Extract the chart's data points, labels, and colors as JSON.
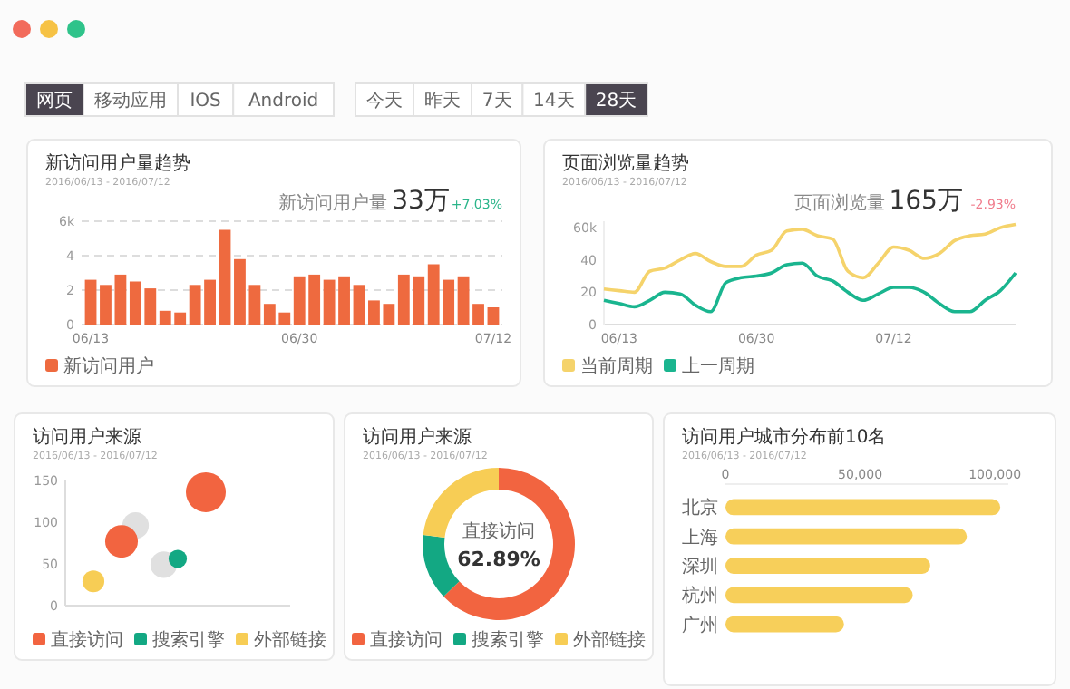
{
  "chart_data": [
    {
      "type": "other",
      "annotations": [
        "网页",
        "移动应用",
        "IOS",
        "Android",
        "今天",
        "昨天",
        "7天",
        "14天",
        "28天"
      ]
    },
    {
      "type": "bar",
      "title": "新访问用户量趋势",
      "subtitle": "2016/06/13 - 2016/07/12",
      "annotations": [
        "新访问用户量",
        "33万",
        "+7.03%"
      ],
      "categories": [
        "06/13",
        null,
        null,
        null,
        null,
        null,
        null,
        null,
        null,
        null,
        null,
        null,
        null,
        null,
        "06/30",
        null,
        null,
        null,
        null,
        null,
        null,
        null,
        null,
        null,
        null,
        null,
        null,
        "07/12"
      ],
      "series": [
        {
          "name": "新访问用户",
          "color": "#ee6a3f",
          "values": [
            2.6,
            2.3,
            2.9,
            2.5,
            2.1,
            0.8,
            0.7,
            2.3,
            2.6,
            5.5,
            3.8,
            2.3,
            1.2,
            0.7,
            2.8,
            2.9,
            2.6,
            2.8,
            2.3,
            1.4,
            1.2,
            2.9,
            2.8,
            3.5,
            2.6,
            2.8,
            1.2,
            1.0
          ]
        }
      ],
      "ylim": [
        0,
        6
      ],
      "yticks": [
        0,
        2,
        4,
        {
          "value": 6,
          "label": "6k"
        }
      ],
      "grid": "y",
      "legend": "bottom"
    },
    {
      "type": "line",
      "title": "页面浏览量趋势",
      "subtitle": "2016/06/13 - 2016/07/12",
      "annotations": [
        "页面浏览量",
        "165万",
        "-2.93%"
      ],
      "categories": [
        null,
        "06/13",
        null,
        null,
        null,
        null,
        null,
        null,
        null,
        null,
        "06/30",
        null,
        null,
        null,
        null,
        null,
        null,
        null,
        null,
        "07/12",
        null,
        null,
        null,
        null,
        null,
        null,
        null,
        null
      ],
      "series": [
        {
          "name": "当前周期",
          "color": "#f5d36b",
          "values": [
            22,
            21,
            20,
            33,
            35,
            40,
            44,
            39,
            36,
            36,
            43,
            46,
            58,
            59,
            55,
            53,
            33,
            29,
            38,
            48,
            46,
            41,
            44,
            52,
            55,
            56,
            60,
            62
          ]
        },
        {
          "name": "上一周期",
          "color": "#1ab58f",
          "values": [
            15,
            13,
            11,
            15,
            20,
            19,
            12,
            8,
            26,
            29,
            30,
            32,
            37,
            38,
            30,
            27,
            20,
            15,
            19,
            23,
            23,
            20,
            13,
            8,
            8,
            15,
            21,
            32
          ]
        }
      ],
      "ylim": [
        0,
        64
      ],
      "yticks": [
        0,
        20,
        40,
        {
          "value": 60,
          "label": "60k"
        }
      ],
      "legend": "bottom"
    },
    {
      "type": "bubble",
      "title": "访问用户来源",
      "subtitle": "2016/06/13 - 2016/07/12",
      "categories": [
        null,
        null,
        null,
        null,
        null,
        null,
        null,
        null,
        null,
        null,
        null,
        null,
        null,
        null,
        null,
        null,
        null
      ],
      "series": [
        {
          "color": "#e0e0e0",
          "values": [
            null,
            null,
            null,
            null,
            null,
            96,
            null,
            49,
            null,
            null,
            null,
            null,
            null,
            null,
            null,
            null,
            null
          ],
          "sizes": [
            null,
            null,
            null,
            null,
            null,
            0.44,
            null,
            0.44,
            null,
            null,
            null,
            null,
            null,
            null,
            null,
            null,
            null
          ]
        },
        {
          "name": "直接访问",
          "color": "#f26440",
          "values": [
            null,
            null,
            null,
            null,
            77,
            null,
            null,
            null,
            null,
            null,
            136,
            null,
            null,
            null,
            null,
            null,
            null
          ],
          "sizes": [
            null,
            null,
            null,
            null,
            0.67,
            null,
            null,
            null,
            null,
            null,
            1,
            null,
            null,
            null,
            null,
            null,
            null
          ]
        },
        {
          "name": "搜索引擎",
          "color": "#13a883",
          "values": [
            null,
            null,
            null,
            null,
            null,
            null,
            null,
            null,
            56,
            null,
            null,
            null,
            null,
            null,
            null,
            null,
            null
          ],
          "sizes": [
            null,
            null,
            null,
            null,
            null,
            null,
            null,
            null,
            0.21,
            null,
            null,
            null,
            null,
            null,
            null,
            null,
            null
          ]
        },
        {
          "name": "外部链接",
          "color": "#f7cd55",
          "values": [
            null,
            null,
            29,
            null,
            null,
            null,
            null,
            null,
            null,
            null,
            null,
            null,
            null,
            null,
            null,
            null,
            null
          ],
          "sizes": [
            null,
            null,
            0.3,
            null,
            null,
            null,
            null,
            null,
            null,
            null,
            null,
            null,
            null,
            null,
            null,
            null,
            null
          ]
        }
      ],
      "ylim": [
        0,
        150
      ],
      "yticks": [
        0,
        50,
        100,
        150
      ],
      "legend": "bottom"
    },
    {
      "type": "donut",
      "title": "访问用户来源",
      "subtitle": "2016/06/13 - 2016/07/12",
      "categories": [
        "直接访问",
        "搜索引擎",
        "外部链接"
      ],
      "values": [
        62.89,
        14,
        23.11
      ],
      "colors": [
        "#f26440",
        "#13a883",
        "#f7cd55"
      ],
      "value_labels": [
        "62.89%",
        null,
        null
      ],
      "legend": "bottom"
    },
    {
      "type": "bar",
      "orientation": "horizontal",
      "title": "访问用户城市分布前10名",
      "subtitle": "2016/06/13 - 2016/07/12",
      "categories": [
        "北京",
        "上海",
        "深圳",
        "杭州",
        "广州"
      ],
      "values": [
        102000,
        89600,
        76000,
        69500,
        44000
      ],
      "color": "#f7cf5a",
      "xlim": [
        0,
        105000
      ],
      "xticks": [
        0,
        {
          "value": 50000,
          "label": "50,000"
        },
        {
          "value": 100000,
          "label": "100,000"
        }
      ]
    }
  ]
}
